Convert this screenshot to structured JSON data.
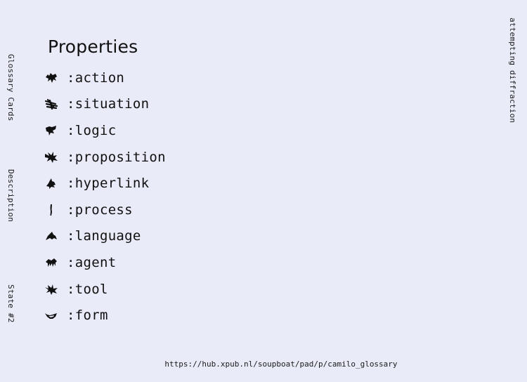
{
  "side_labels": {
    "glossary": "Glossary Cards",
    "description": "Description",
    "state": "State #2",
    "right": "attempting diffraction"
  },
  "heading": "Properties",
  "properties": [
    {
      "label": ":action",
      "icon": "splat-action-icon"
    },
    {
      "label": ":situation",
      "icon": "scribble-situation-icon"
    },
    {
      "label": ":logic",
      "icon": "blob-logic-icon"
    },
    {
      "label": ":proposition",
      "icon": "spiky-proposition-icon"
    },
    {
      "label": ":hyperlink",
      "icon": "splat-hyperlink-icon"
    },
    {
      "label": ":process",
      "icon": "dash-process-icon"
    },
    {
      "label": ":language",
      "icon": "mound-language-icon"
    },
    {
      "label": ":agent",
      "icon": "comb-agent-icon"
    },
    {
      "label": ":tool",
      "icon": "spiky-tool-icon"
    },
    {
      "label": ":form",
      "icon": "eye-form-icon"
    }
  ],
  "footer_url": "https://hub.xpub.nl/soupboat/pad/p/camilo_glossary"
}
